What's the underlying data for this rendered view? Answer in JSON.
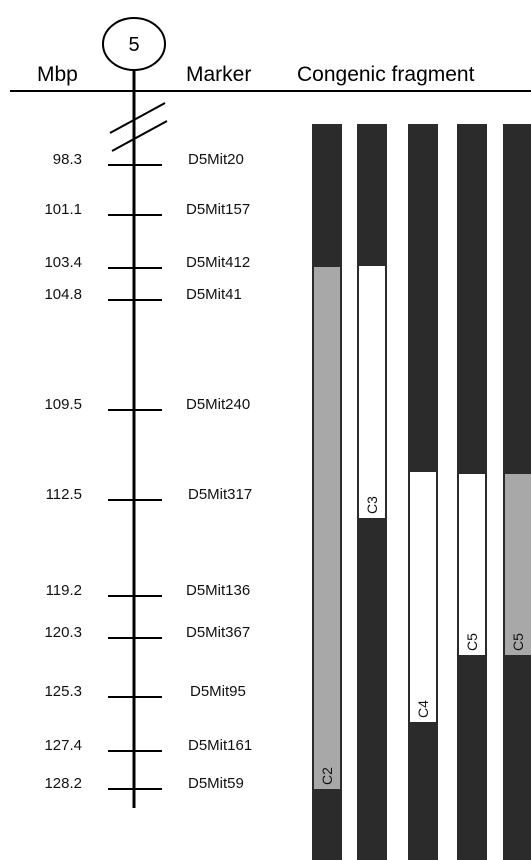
{
  "headers": {
    "mbp": "Mbp",
    "marker": "Marker",
    "congenic": "Congenic fragment"
  },
  "chromosome": {
    "number": "5"
  },
  "markers": [
    {
      "pos": "98.3",
      "name": "D5Mit20"
    },
    {
      "pos": "101.1",
      "name": "D5Mit157"
    },
    {
      "pos": "103.4",
      "name": "D5Mit412"
    },
    {
      "pos": "104.8",
      "name": "D5Mit41"
    },
    {
      "pos": "109.5",
      "name": "D5Mit240"
    },
    {
      "pos": "112.5",
      "name": "D5Mit317"
    },
    {
      "pos": "119.2",
      "name": "D5Mit136"
    },
    {
      "pos": "120.3",
      "name": "D5Mit367"
    },
    {
      "pos": "125.3",
      "name": "D5Mit95"
    },
    {
      "pos": "127.4",
      "name": "D5Mit161"
    },
    {
      "pos": "128.2",
      "name": "D5Mit59"
    }
  ],
  "fragments": [
    {
      "label": "C2",
      "from_marker": "D5Mit412",
      "to_marker": "D5Mit59",
      "fill": "#a8a8a8"
    },
    {
      "label": "C3",
      "from_marker": "D5Mit412",
      "to_marker": "D5Mit317",
      "fill": "#ffffff"
    },
    {
      "label": "C4",
      "from_marker": "D5Mit317",
      "to_marker": "D5Mit95",
      "fill": "#ffffff"
    },
    {
      "label": "C5",
      "from_marker": "D5Mit317",
      "to_marker": "D5Mit367",
      "fill": "#ffffff"
    },
    {
      "label": "C5",
      "from_marker": "D5Mit317",
      "to_marker": "D5Mit367",
      "fill": "#a8a8a8"
    }
  ],
  "colors": {
    "bar": "#2b2b2b",
    "line": "#000000"
  }
}
